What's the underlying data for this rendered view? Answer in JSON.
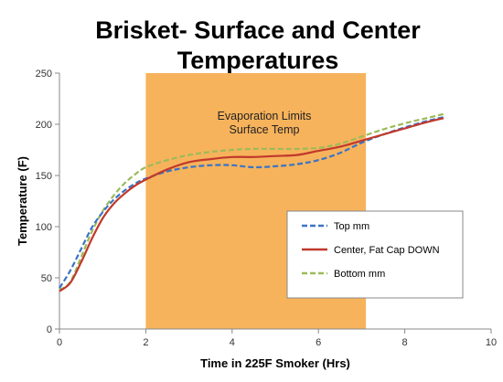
{
  "chart_data": {
    "type": "line",
    "title_line1": "Brisket- Surface and Center",
    "title_line2": "Temperatures",
    "xlabel": "Time in 225F Smoker (Hrs)",
    "ylabel": "Temperature (F)",
    "xlim": [
      0,
      10
    ],
    "ylim": [
      0,
      250
    ],
    "x_ticks": [
      "0",
      "2",
      "4",
      "6",
      "8",
      "10"
    ],
    "y_ticks": [
      "0",
      "50",
      "100",
      "150",
      "200",
      "250"
    ],
    "grid": false,
    "legend_position": "lower-right",
    "shaded_region": {
      "x_start": 2,
      "x_end": 7.1,
      "color": "#f7b35c",
      "label_line1": "Evaporation Limits",
      "label_line2": "Surface Temp"
    },
    "series": [
      {
        "name": "Top mm",
        "color": "#3b74c4",
        "style": "dashed",
        "x": [
          0,
          0.25,
          0.5,
          0.75,
          1,
          1.25,
          1.5,
          1.75,
          2,
          2.5,
          3,
          3.5,
          4,
          4.5,
          5,
          5.5,
          6,
          6.5,
          7,
          7.5,
          8,
          8.5,
          8.9
        ],
        "y": [
          40,
          57,
          78,
          99,
          114,
          126,
          135,
          142,
          147,
          154,
          158,
          160,
          160,
          158,
          159,
          161,
          165,
          172,
          182,
          190,
          197,
          203,
          207
        ]
      },
      {
        "name": "Center, Fat Cap DOWN",
        "color": "#c0392b",
        "style": "solid",
        "x": [
          0,
          0.25,
          0.5,
          0.75,
          1,
          1.25,
          1.5,
          1.75,
          2,
          2.5,
          3,
          3.5,
          4,
          4.5,
          5,
          5.5,
          6,
          6.5,
          7,
          7.5,
          8,
          8.5,
          8.9
        ],
        "y": [
          37,
          45,
          65,
          88,
          108,
          122,
          132,
          140,
          146,
          156,
          163,
          166,
          168,
          168,
          169,
          170,
          174,
          178,
          184,
          190,
          196,
          202,
          206
        ]
      },
      {
        "name": "Bottom mm",
        "color": "#9bbb59",
        "style": "dashed",
        "x": [
          0,
          0.25,
          0.5,
          0.75,
          1,
          1.25,
          1.5,
          1.75,
          2,
          2.5,
          3,
          3.5,
          4,
          4.5,
          5,
          5.5,
          6,
          6.5,
          7,
          7.5,
          8,
          8.5,
          8.9
        ],
        "y": [
          38,
          46,
          70,
          95,
          115,
          130,
          142,
          151,
          158,
          165,
          170,
          173,
          175,
          176,
          176,
          176,
          177,
          181,
          188,
          195,
          201,
          206,
          210
        ]
      }
    ]
  }
}
